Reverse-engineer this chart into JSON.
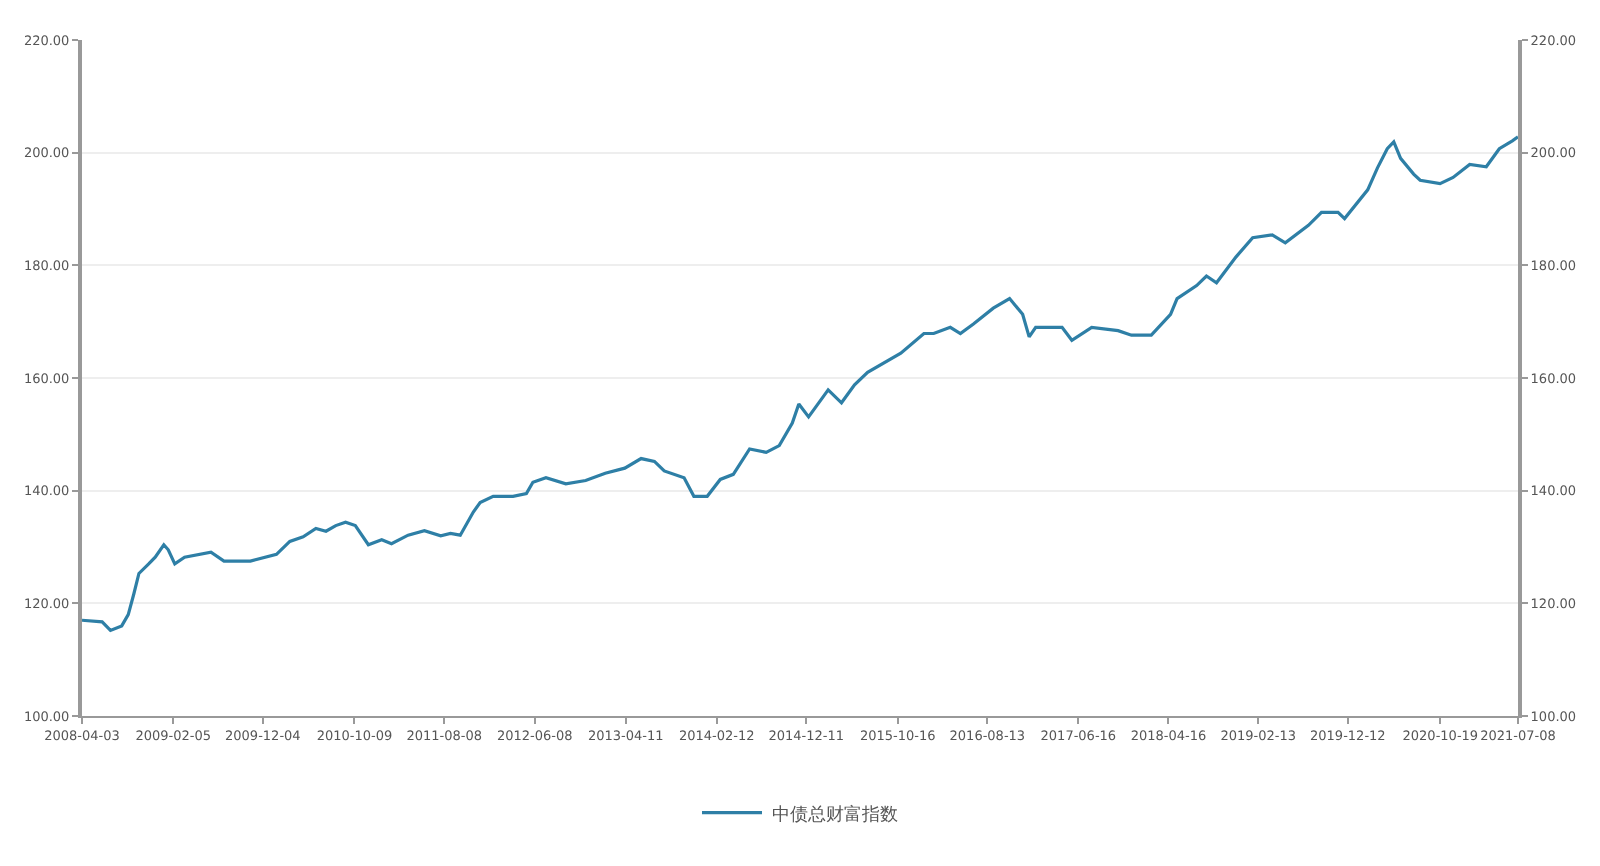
{
  "chart_data": {
    "type": "line",
    "x": [
      "2008-04-03",
      "2008-06-10",
      "2008-07-08",
      "2008-08-15",
      "2008-09-06",
      "2008-09-25",
      "2008-10-12",
      "2008-11-14",
      "2008-12-06",
      "2009-01-04",
      "2009-01-19",
      "2009-02-10",
      "2009-03-15",
      "2009-06-12",
      "2009-07-26",
      "2009-10-23",
      "2010-01-19",
      "2010-03-05",
      "2010-04-19",
      "2010-06-01",
      "2010-07-05",
      "2010-08-07",
      "2010-09-09",
      "2010-10-12",
      "2010-11-25",
      "2011-01-09",
      "2011-02-11",
      "2011-04-08",
      "2011-06-02",
      "2011-07-27",
      "2011-08-29",
      "2011-10-01",
      "2011-11-14",
      "2011-12-07",
      "2012-01-20",
      "2012-03-27",
      "2012-05-11",
      "2012-06-02",
      "2012-07-16",
      "2012-09-21",
      "2012-11-27",
      "2013-02-01",
      "2013-04-08",
      "2013-06-02",
      "2013-07-17",
      "2013-08-19",
      "2013-10-25",
      "2013-11-27",
      "2014-01-11",
      "2014-02-24",
      "2014-04-09",
      "2014-06-03",
      "2014-07-29",
      "2014-09-11",
      "2014-10-25",
      "2014-11-16",
      "2014-12-19",
      "2015-02-23",
      "2015-04-09",
      "2015-05-23",
      "2015-07-06",
      "2015-10-26",
      "2016-01-12",
      "2016-02-14",
      "2016-04-10",
      "2016-05-14",
      "2016-06-27",
      "2016-09-02",
      "2016-10-27",
      "2016-12-10",
      "2017-01-01",
      "2017-01-23",
      "2017-04-22",
      "2017-05-25",
      "2017-07-31",
      "2017-10-28",
      "2017-12-12",
      "2018-02-17",
      "2018-04-23",
      "2018-05-15",
      "2018-07-20",
      "2018-08-22",
      "2018-09-25",
      "2018-11-30",
      "2019-01-25",
      "2019-04-01",
      "2019-05-15",
      "2019-08-01",
      "2019-09-14",
      "2019-11-09",
      "2019-12-01",
      "2020-02-17",
      "2020-03-21",
      "2020-04-23",
      "2020-05-15",
      "2020-06-07",
      "2020-07-21",
      "2020-08-12",
      "2020-10-18",
      "2020-12-01",
      "2021-01-26",
      "2021-03-23",
      "2021-05-06",
      "2021-06-19",
      "2021-07-08"
    ],
    "series": [
      {
        "name": "中债总财富指数",
        "color": "#2e7fa6",
        "values": [
          117.0,
          116.7,
          115.2,
          116.0,
          118.0,
          121.7,
          125.3,
          127.0,
          128.2,
          130.4,
          129.5,
          127.0,
          128.2,
          129.1,
          127.5,
          127.5,
          128.7,
          131.0,
          131.8,
          133.3,
          132.8,
          133.8,
          134.4,
          133.8,
          130.4,
          131.3,
          130.6,
          132.1,
          132.9,
          132.0,
          132.4,
          132.1,
          136.2,
          137.9,
          139.0,
          139.0,
          139.5,
          141.5,
          142.3,
          141.2,
          141.8,
          143.1,
          144.0,
          145.7,
          145.2,
          143.5,
          142.3,
          139.0,
          139.0,
          142.0,
          142.9,
          147.4,
          146.8,
          148.0,
          152.0,
          155.4,
          153.1,
          157.9,
          155.6,
          158.8,
          161.0,
          164.4,
          167.9,
          167.9,
          169.0,
          167.9,
          169.6,
          172.4,
          174.1,
          171.3,
          167.3,
          169.0,
          169.0,
          166.7,
          169.0,
          168.4,
          167.6,
          167.6,
          171.3,
          174.1,
          176.4,
          178.1,
          176.9,
          181.5,
          184.9,
          185.4,
          184.0,
          187.1,
          189.4,
          189.4,
          188.3,
          193.4,
          197.3,
          200.7,
          201.9,
          199.0,
          196.2,
          195.1,
          194.5,
          195.6,
          197.9,
          197.5,
          200.7,
          202.1,
          202.8
        ]
      }
    ],
    "xlim": [
      "2008-04-03",
      "2021-07-08"
    ],
    "xticks": [
      "2008-04-03",
      "2009-02-05",
      "2009-12-04",
      "2010-10-09",
      "2011-08-08",
      "2012-06-08",
      "2013-04-11",
      "2014-02-12",
      "2014-12-11",
      "2015-10-16",
      "2016-08-13",
      "2017-06-16",
      "2018-04-16",
      "2019-02-13",
      "2019-12-12",
      "2020-10-19",
      "2021-07-08"
    ],
    "ylim": [
      100,
      220
    ],
    "yticks": [
      {
        "value": 100,
        "label": "100.00"
      },
      {
        "value": 120,
        "label": "120.00"
      },
      {
        "value": 140,
        "label": "140.00"
      },
      {
        "value": 160,
        "label": "160.00"
      },
      {
        "value": 180,
        "label": "180.00"
      },
      {
        "value": 200,
        "label": "200.00"
      },
      {
        "value": 220,
        "label": "220.00"
      }
    ],
    "y2lim": [
      100,
      220
    ],
    "y2ticks": [
      {
        "value": 100,
        "label": "100.00"
      },
      {
        "value": 120,
        "label": "120.00"
      },
      {
        "value": 140,
        "label": "140.00"
      },
      {
        "value": 160,
        "label": "160.00"
      },
      {
        "value": 180,
        "label": "180.00"
      },
      {
        "value": 200,
        "label": "200.00"
      },
      {
        "value": 220,
        "label": "220.00"
      }
    ],
    "grid": "y",
    "legend": "bottom",
    "marker": "none",
    "line_style": "solid"
  }
}
